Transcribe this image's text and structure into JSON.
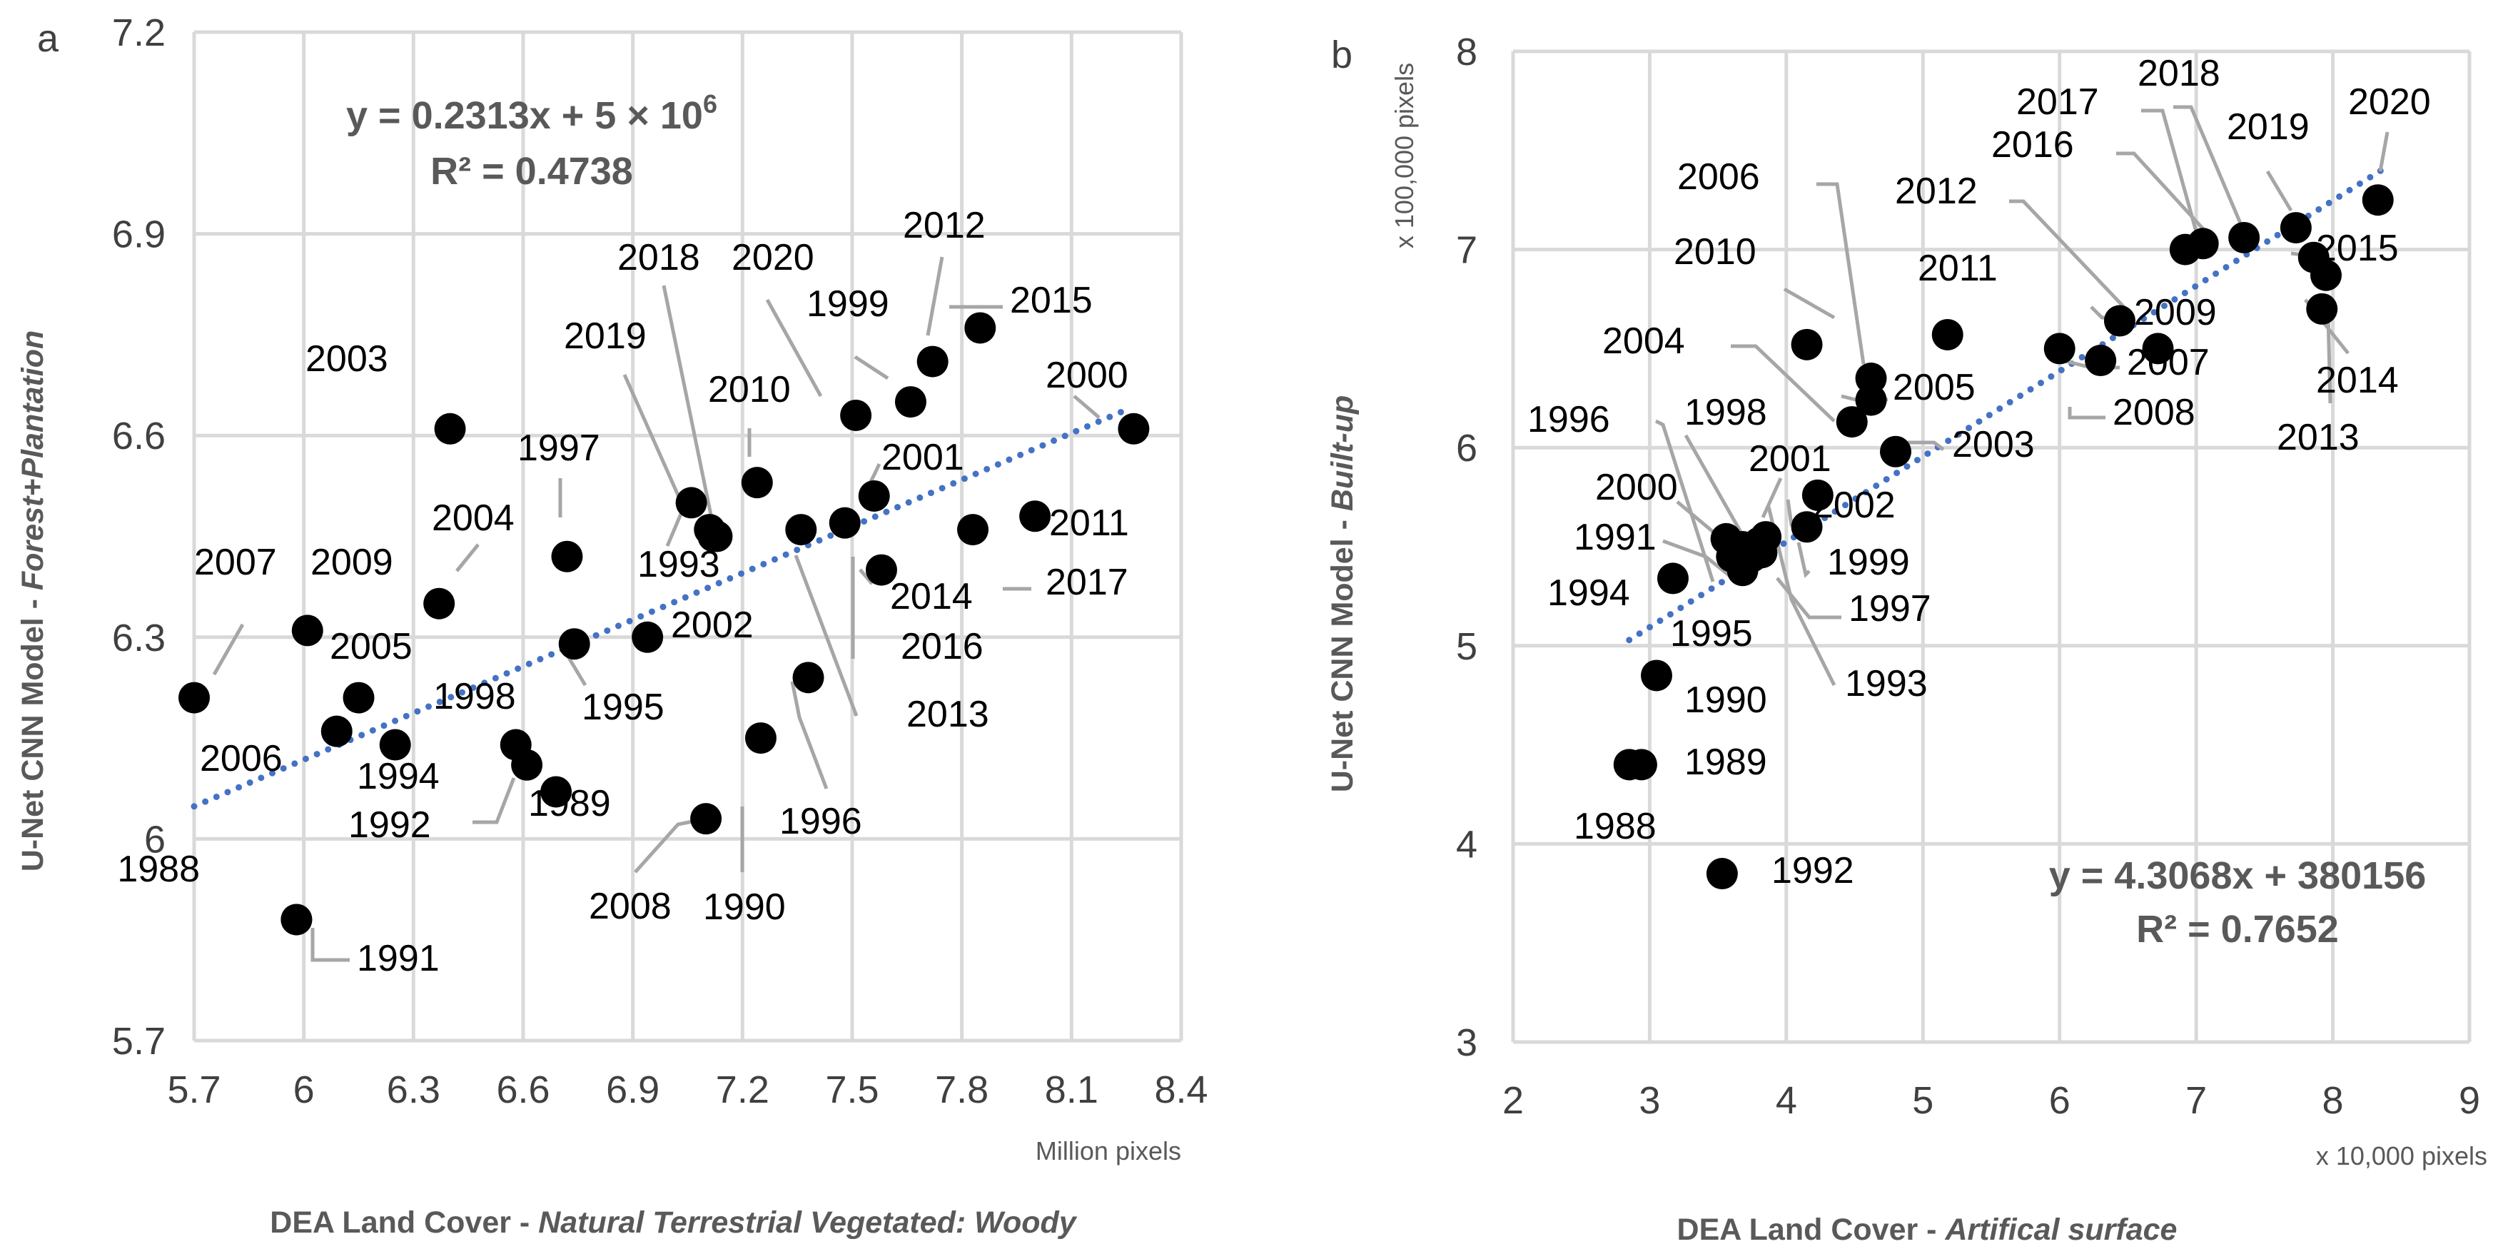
{
  "chart_data": [
    {
      "type": "scatter",
      "panel_label": "a",
      "xlabel_prefix": "DEA Land Cover - ",
      "xlabel_italic": "Natural Terrestrial Vegetated: Woody",
      "ylabel_prefix": "U-Net CNN Model - ",
      "ylabel_italic": "Forest+Plantation",
      "x_unit": "Million pixels",
      "xlim": [
        5.7,
        8.4
      ],
      "ylim": [
        5.7,
        7.2
      ],
      "xticks": [
        "5.7",
        "6",
        "6.3",
        "6.6",
        "6.9",
        "7.2",
        "7.5",
        "7.8",
        "8.1",
        "8.4"
      ],
      "yticks": [
        "5.7",
        "6",
        "6.3",
        "6.6",
        "6.9",
        "7.2"
      ],
      "trendline": {
        "slope": 0.2313,
        "intercept": 4.73,
        "x_range": [
          5.7,
          8.25
        ]
      },
      "equation_line1": "y = 0.2313x + 5 × 10",
      "equation_exp": "6",
      "equation_line2": "R² = 0.4738",
      "points": [
        {
          "label": "1988",
          "x": 5.98,
          "y": 5.88
        },
        {
          "label": "1989",
          "x": 6.69,
          "y": 6.07
        },
        {
          "label": "1990",
          "x": 7.1,
          "y": 6.03
        },
        {
          "label": "1991",
          "x": 5.98,
          "y": 5.88
        },
        {
          "label": "1992",
          "x": 6.61,
          "y": 6.11
        },
        {
          "label": "1993",
          "x": 7.11,
          "y": 6.46
        },
        {
          "label": "1994",
          "x": 6.25,
          "y": 6.14
        },
        {
          "label": "1995",
          "x": 6.74,
          "y": 6.29
        },
        {
          "label": "1996",
          "x": 7.38,
          "y": 6.24
        },
        {
          "label": "1997",
          "x": 6.72,
          "y": 6.42
        },
        {
          "label": "1998",
          "x": 6.58,
          "y": 6.14
        },
        {
          "label": "1999",
          "x": 7.66,
          "y": 6.65
        },
        {
          "label": "2000",
          "x": 8.27,
          "y": 6.61
        },
        {
          "label": "2001",
          "x": 7.56,
          "y": 6.51
        },
        {
          "label": "2002",
          "x": 6.94,
          "y": 6.3
        },
        {
          "label": "2003",
          "x": 6.4,
          "y": 6.61
        },
        {
          "label": "2004",
          "x": 6.37,
          "y": 6.35
        },
        {
          "label": "2005",
          "x": 6.15,
          "y": 6.21
        },
        {
          "label": "2006",
          "x": 6.09,
          "y": 6.16
        },
        {
          "label": "2007",
          "x": 5.7,
          "y": 6.21
        },
        {
          "label": "2008",
          "x": 7.13,
          "y": 6.45
        },
        {
          "label": "2009",
          "x": 6.01,
          "y": 6.31
        },
        {
          "label": "2010",
          "x": 7.24,
          "y": 6.53
        },
        {
          "label": "2011",
          "x": 8.0,
          "y": 6.48
        },
        {
          "label": "2012",
          "x": 7.72,
          "y": 6.71
        },
        {
          "label": "2013",
          "x": 7.36,
          "y": 6.46
        },
        {
          "label": "2014",
          "x": 7.58,
          "y": 6.4
        },
        {
          "label": "2015",
          "x": 7.85,
          "y": 6.76
        },
        {
          "label": "2016",
          "x": 7.48,
          "y": 6.47
        },
        {
          "label": "2017",
          "x": 7.83,
          "y": 6.46
        },
        {
          "label": "2018",
          "x": 7.12,
          "y": 6.45
        },
        {
          "label": "2019",
          "x": 7.06,
          "y": 6.5
        },
        {
          "label": "2020",
          "x": 7.51,
          "y": 6.63
        },
        {
          "label": "",
          "x": 7.25,
          "y": 6.15
        }
      ]
    },
    {
      "type": "scatter",
      "panel_label": "b",
      "xlabel_prefix": "DEA Land Cover - ",
      "xlabel_italic": "Artifical surface",
      "ylabel_prefix": "U-Net CNN Model - ",
      "ylabel_italic": "Built-up",
      "x_unit": "x 10,000 pixels",
      "y_unit": "x 100,000 pixels",
      "xlim": [
        2,
        9
      ],
      "ylim": [
        3,
        8
      ],
      "xticks": [
        "2",
        "3",
        "4",
        "5",
        "6",
        "7",
        "8",
        "9"
      ],
      "yticks": [
        "3",
        "4",
        "5",
        "6",
        "7",
        "8"
      ],
      "trendline": {
        "slope": 0.43068,
        "intercept": 3.80156,
        "x_range": [
          2.85,
          8.35
        ]
      },
      "equation_line1": "y = 4.3068x + 380156",
      "equation_line2": "R² = 0.7652",
      "points": [
        {
          "label": "1988",
          "x": 2.85,
          "y": 4.4
        },
        {
          "label": "1989",
          "x": 2.94,
          "y": 4.4
        },
        {
          "label": "1990",
          "x": 3.05,
          "y": 4.85
        },
        {
          "label": "1991",
          "x": 3.6,
          "y": 5.45
        },
        {
          "label": "1992",
          "x": 3.53,
          "y": 3.85
        },
        {
          "label": "1993",
          "x": 3.75,
          "y": 5.45
        },
        {
          "label": "1994",
          "x": 3.17,
          "y": 5.34
        },
        {
          "label": "1995",
          "x": 3.68,
          "y": 5.38
        },
        {
          "label": "1996",
          "x": 3.56,
          "y": 5.54
        },
        {
          "label": "1997",
          "x": 3.82,
          "y": 5.47
        },
        {
          "label": "1998",
          "x": 3.85,
          "y": 5.55
        },
        {
          "label": "1999",
          "x": 4.15,
          "y": 5.6
        },
        {
          "label": "2000",
          "x": 3.68,
          "y": 5.5
        },
        {
          "label": "2001",
          "x": 3.8,
          "y": 5.52
        },
        {
          "label": "2002",
          "x": 4.23,
          "y": 5.76
        },
        {
          "label": "2003",
          "x": 4.8,
          "y": 5.98
        },
        {
          "label": "2004",
          "x": 4.48,
          "y": 6.13
        },
        {
          "label": "2005",
          "x": 4.62,
          "y": 6.24
        },
        {
          "label": "2006",
          "x": 4.62,
          "y": 6.35
        },
        {
          "label": "2007",
          "x": 6.72,
          "y": 6.5
        },
        {
          "label": "2008",
          "x": 6.0,
          "y": 6.5
        },
        {
          "label": "2009",
          "x": 6.44,
          "y": 6.64
        },
        {
          "label": "2010",
          "x": 4.15,
          "y": 6.52
        },
        {
          "label": "2011",
          "x": 5.18,
          "y": 6.57
        },
        {
          "label": "2012",
          "x": 6.3,
          "y": 6.44
        },
        {
          "label": "2013",
          "x": 7.92,
          "y": 6.7
        },
        {
          "label": "2014",
          "x": 7.95,
          "y": 6.87
        },
        {
          "label": "2015",
          "x": 7.86,
          "y": 6.96
        },
        {
          "label": "2016",
          "x": 6.92,
          "y": 7.0
        },
        {
          "label": "2017",
          "x": 7.05,
          "y": 7.03
        },
        {
          "label": "2018",
          "x": 7.35,
          "y": 7.06
        },
        {
          "label": "2019",
          "x": 7.73,
          "y": 7.11
        },
        {
          "label": "2020",
          "x": 8.33,
          "y": 7.25
        }
      ]
    }
  ]
}
